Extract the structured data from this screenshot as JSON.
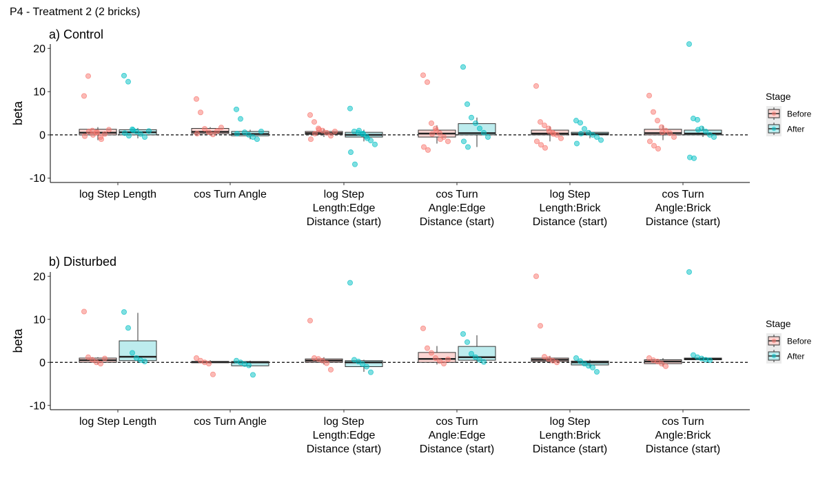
{
  "figure_title": "P4 - Treatment 2 (2 bricks)",
  "colors": {
    "before_fill": "#F8766D",
    "after_fill": "#00BFC4",
    "before_box": "#FBD5D2",
    "after_box": "#BDECEE"
  },
  "chart_data": [
    {
      "type": "box",
      "title": "a) Control",
      "ylabel": "beta",
      "xlabel": "",
      "ylim": [
        -11,
        21
      ],
      "yticks": [
        -10,
        0,
        10,
        20
      ],
      "reference_line_y": 0,
      "categories": [
        "log Step Length",
        "cos Turn Angle",
        "log Step\nLength:Edge\nDistance (start)",
        "cos Turn\nAngle:Edge\nDistance (start)",
        "log Step\nLength:Brick\nDistance (start)",
        "cos Turn\nAngle:Brick\nDistance (start)"
      ],
      "legend": {
        "title": "Stage",
        "entries": [
          "Before",
          "After"
        ],
        "position": "right"
      },
      "series": [
        {
          "name": "Before",
          "boxes": [
            {
              "q1": 0.0,
              "median": 0.5,
              "q3": 1.3,
              "whisker_low": -1.2,
              "whisker_high": 1.8
            },
            {
              "q1": 0.3,
              "median": 0.7,
              "q3": 1.5,
              "whisker_low": 0.0,
              "whisker_high": 1.8
            },
            {
              "q1": 0.1,
              "median": 0.4,
              "q3": 0.8,
              "whisker_low": -0.5,
              "whisker_high": 1.4
            },
            {
              "q1": -0.5,
              "median": 0.3,
              "q3": 1.1,
              "whisker_low": -2.0,
              "whisker_high": 2.2
            },
            {
              "q1": 0.0,
              "median": 0.3,
              "q3": 1.1,
              "whisker_low": -1.5,
              "whisker_high": 2.0
            },
            {
              "q1": 0.0,
              "median": 0.4,
              "q3": 1.3,
              "whisker_low": -1.2,
              "whisker_high": 2.2
            }
          ],
          "points": [
            [
              9.0,
              13.6,
              1.0,
              0.5,
              -0.5,
              0.2,
              1.2,
              -0.3,
              0.8,
              0.0,
              0.6,
              -1.0
            ],
            [
              8.3,
              5.2,
              1.4,
              0.6,
              0.1,
              0.9,
              1.7,
              0.3
            ],
            [
              4.6,
              3.0,
              1.5,
              1.0,
              0.5,
              -0.2,
              0.8,
              -1.0,
              0.3,
              1.2
            ],
            [
              13.8,
              12.2,
              2.7,
              1.5,
              0.4,
              -0.5,
              -1.5,
              -2.8,
              -3.5,
              0.2,
              1.0,
              -1.0
            ],
            [
              11.3,
              3.0,
              2.2,
              1.5,
              0.5,
              0.0,
              -0.8,
              -1.5,
              -2.3,
              -3.0,
              0.8,
              0.2
            ],
            [
              9.1,
              5.3,
              3.3,
              1.8,
              1.0,
              0.4,
              -0.5,
              -1.5,
              -2.5,
              -3.2,
              0.6
            ]
          ]
        },
        {
          "name": "After",
          "boxes": [
            {
              "q1": 0.0,
              "median": 0.6,
              "q3": 1.2,
              "whisker_low": -0.8,
              "whisker_high": 1.6
            },
            {
              "q1": -0.2,
              "median": 0.2,
              "q3": 0.8,
              "whisker_low": -1.0,
              "whisker_high": 1.2
            },
            {
              "q1": -0.5,
              "median": 0.0,
              "q3": 0.6,
              "whisker_low": -1.5,
              "whisker_high": 1.2
            },
            {
              "q1": 0.0,
              "median": 0.4,
              "q3": 2.6,
              "whisker_low": -2.8,
              "whisker_high": 4.0
            },
            {
              "q1": 0.0,
              "median": 0.2,
              "q3": 0.6,
              "whisker_low": -0.8,
              "whisker_high": 1.0
            },
            {
              "q1": 0.0,
              "median": 0.3,
              "q3": 1.1,
              "whisker_low": -0.5,
              "whisker_high": 2.0
            }
          ],
          "points": [
            [
              13.7,
              12.3,
              1.3,
              0.8,
              0.2,
              -0.5,
              0.9,
              0.4,
              -0.2,
              1.1
            ],
            [
              5.9,
              3.7,
              0.6,
              0.0,
              -0.5,
              -1.0,
              0.8,
              0.3
            ],
            [
              6.1,
              0.8,
              0.5,
              0.2,
              -0.4,
              -1.3,
              -2.2,
              -4.0,
              -6.8,
              1.0,
              0.3,
              -0.8
            ],
            [
              15.7,
              7.1,
              4.0,
              2.7,
              1.5,
              0.5,
              -0.5,
              -1.5,
              -2.8
            ],
            [
              3.3,
              2.8,
              1.4,
              0.5,
              0.0,
              -0.5,
              -1.2,
              -2.0,
              0.3
            ],
            [
              21.0,
              3.8,
              3.5,
              1.5,
              0.8,
              0.0,
              -0.5,
              -5.2,
              -5.4,
              1.2
            ]
          ]
        }
      ]
    },
    {
      "type": "box",
      "title": "b) Disturbed",
      "ylabel": "beta",
      "xlabel": "",
      "ylim": [
        -11,
        21
      ],
      "yticks": [
        -10,
        0,
        10,
        20
      ],
      "reference_line_y": 0,
      "categories": [
        "log Step Length",
        "cos Turn Angle",
        "log Step\nLength:Edge\nDistance (start)",
        "cos Turn\nAngle:Edge\nDistance (start)",
        "log Step\nLength:Brick\nDistance (start)",
        "cos Turn\nAngle:Brick\nDistance (start)"
      ],
      "legend": {
        "title": "Stage",
        "entries": [
          "Before",
          "After"
        ],
        "position": "right"
      },
      "series": [
        {
          "name": "Before",
          "boxes": [
            {
              "q1": 0.0,
              "median": 0.5,
              "q3": 1.0,
              "whisker_low": -0.5,
              "whisker_high": 1.2
            },
            {
              "q1": -0.1,
              "median": 0.1,
              "q3": 0.2,
              "whisker_low": -0.3,
              "whisker_high": 0.5
            },
            {
              "q1": 0.0,
              "median": 0.4,
              "q3": 0.8,
              "whisker_low": -0.5,
              "whisker_high": 1.2
            },
            {
              "q1": 0.0,
              "median": 0.8,
              "q3": 2.3,
              "whisker_low": -0.5,
              "whisker_high": 3.8
            },
            {
              "q1": 0.2,
              "median": 0.6,
              "q3": 1.0,
              "whisker_low": -0.2,
              "whisker_high": 1.5
            },
            {
              "q1": -0.3,
              "median": 0.2,
              "q3": 0.6,
              "whisker_low": -1.0,
              "whisker_high": 1.0
            }
          ],
          "points": [
            [
              11.8,
              1.2,
              0.6,
              0.0,
              -0.3,
              0.9
            ],
            [
              1.0,
              0.4,
              0.0,
              -0.3,
              -2.8
            ],
            [
              9.7,
              1.0,
              0.8,
              0.4,
              -0.2,
              -1.7
            ],
            [
              7.9,
              3.3,
              2.2,
              1.0,
              0.3,
              -0.3,
              0.7
            ],
            [
              20.0,
              8.5,
              1.3,
              0.8,
              0.4,
              0.0
            ],
            [
              1.0,
              0.5,
              0.2,
              -0.3,
              -0.9
            ]
          ]
        },
        {
          "name": "After",
          "boxes": [
            {
              "q1": 0.4,
              "median": 1.3,
              "q3": 5.0,
              "whisker_low": 0.0,
              "whisker_high": 11.5
            },
            {
              "q1": -0.8,
              "median": 0.0,
              "q3": 0.2,
              "whisker_low": -1.2,
              "whisker_high": 0.4
            },
            {
              "q1": -1.0,
              "median": 0.0,
              "q3": 0.4,
              "whisker_low": -2.2,
              "whisker_high": 0.6
            },
            {
              "q1": 0.5,
              "median": 1.2,
              "q3": 3.7,
              "whisker_low": 0.0,
              "whisker_high": 6.3
            },
            {
              "q1": -0.6,
              "median": 0.0,
              "q3": 0.3,
              "whisker_low": -1.2,
              "whisker_high": 0.6
            },
            {
              "q1": 0.6,
              "median": 0.8,
              "q3": 1.0,
              "whisker_low": 0.4,
              "whisker_high": 1.3
            }
          ],
          "points": [
            [
              11.7,
              8.0,
              2.2,
              1.0,
              0.5,
              0.2
            ],
            [
              0.4,
              0.0,
              -0.4,
              -0.7,
              -2.9
            ],
            [
              18.5,
              0.6,
              0.2,
              -0.4,
              -1.0,
              -2.3
            ],
            [
              6.6,
              4.7,
              2.0,
              1.2,
              0.6,
              0.1
            ],
            [
              1.0,
              0.3,
              -0.3,
              -0.8,
              -1.2,
              -2.2
            ],
            [
              21.0,
              1.7,
              1.2,
              0.9,
              0.6,
              0.5
            ]
          ]
        }
      ]
    }
  ]
}
